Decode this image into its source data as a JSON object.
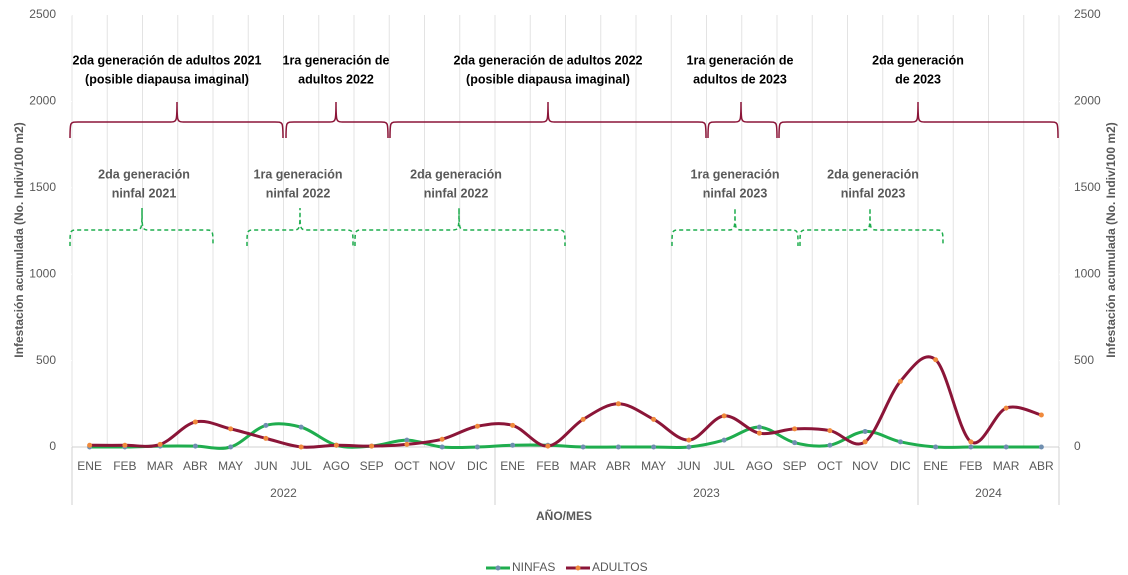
{
  "chart_data": {
    "type": "line",
    "y_label": "Infestación acumulada (No. Indiv/100 m2)",
    "y2_label": "Infestación acumulada (No. Indiv/100 m2)",
    "x_label": "AÑO/MES",
    "categories": [
      "ENE",
      "FEB",
      "MAR",
      "ABR",
      "MAY",
      "JUN",
      "JUL",
      "AGO",
      "SEP",
      "OCT",
      "NOV",
      "DIC",
      "ENE",
      "FEB",
      "MAR",
      "ABR",
      "MAY",
      "JUN",
      "JUL",
      "AGO",
      "SEP",
      "OCT",
      "NOV",
      "DIC",
      "ENE",
      "FEB",
      "MAR",
      "ABR"
    ],
    "x_groups": [
      "2022",
      "2023",
      "2024"
    ],
    "series": [
      {
        "name": "NINFAS",
        "color": "#1fad4e",
        "marker_color": "#6f8fb0",
        "values": [
          0,
          0,
          5,
          5,
          0,
          125,
          115,
          10,
          5,
          40,
          0,
          0,
          10,
          10,
          0,
          0,
          0,
          0,
          40,
          115,
          25,
          10,
          90,
          30,
          0,
          0,
          0,
          0
        ]
      },
      {
        "name": "ADULTOS",
        "color": "#8b1538",
        "marker_color": "#f08a3c",
        "axis": "y2",
        "values": [
          10,
          10,
          15,
          145,
          105,
          50,
          0,
          10,
          5,
          15,
          45,
          120,
          125,
          5,
          160,
          250,
          160,
          40,
          180,
          80,
          105,
          95,
          30,
          380,
          505,
          30,
          225,
          185
        ]
      }
    ],
    "ylim": [
      0,
      2500
    ],
    "yticks": [
      0,
      500,
      1000,
      1500,
      2000,
      2500
    ],
    "y2lim": [
      0,
      2500
    ],
    "y2ticks": [
      0,
      500,
      1000,
      1500,
      2000,
      2500
    ],
    "legend": "bottom",
    "annotations": [
      {
        "lines": [
          "2da generación de adultos 2021",
          "(posible diapausa imaginal)"
        ],
        "group": "adults"
      },
      {
        "lines": [
          "1ra generación de",
          "adultos 2022"
        ],
        "group": "adults"
      },
      {
        "lines": [
          "2da generación de adultos 2022",
          "(posible diapausa imaginal)"
        ],
        "group": "adults"
      },
      {
        "lines": [
          "1ra generación de",
          "adultos de 2023"
        ],
        "group": "adults"
      },
      {
        "lines": [
          "2da generación",
          "de 2023"
        ],
        "group": "adults"
      },
      {
        "lines": [
          "2da generación",
          "ninfal 2021"
        ],
        "group": "nymphs"
      },
      {
        "lines": [
          "1ra generación",
          "ninfal 2022"
        ],
        "group": "nymphs"
      },
      {
        "lines": [
          "2da generación",
          "ninfal 2022"
        ],
        "group": "nymphs"
      },
      {
        "lines": [
          "1ra generación",
          "ninfal 2023"
        ],
        "group": "nymphs"
      },
      {
        "lines": [
          "2da generación",
          "ninfal 2023"
        ],
        "group": "nymphs"
      }
    ]
  }
}
